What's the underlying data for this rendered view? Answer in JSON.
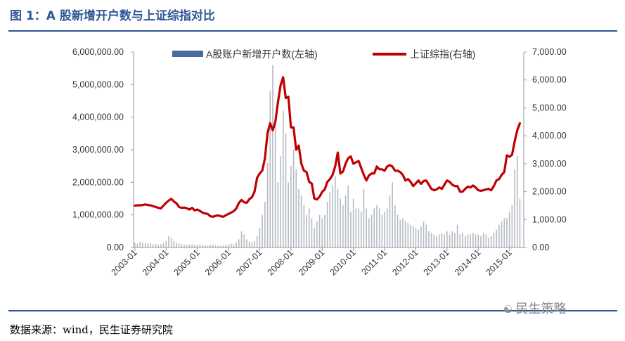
{
  "header": {
    "title": "图 1：A 股新增开户数与上证综指对比"
  },
  "footer": {
    "source": "数据来源：wind，民生证券研究院"
  },
  "watermark": {
    "text": "民生策略",
    "icon": "wechat-icon"
  },
  "colors": {
    "brand": "#2e5597",
    "bars": "#b4bac3",
    "legend_bar": "#4a69a0",
    "line": "#c00000"
  },
  "chart_data": {
    "type": "bar+line",
    "title": "",
    "x_tick_labels": [
      "2003-01",
      "2004-01",
      "2005-01",
      "2006-01",
      "2007-01",
      "2008-01",
      "2009-01",
      "2010-01",
      "2011-01",
      "2012-01",
      "2013-01",
      "2014-01",
      "2015-01"
    ],
    "y_left": {
      "label": "",
      "range": [
        0,
        6000000
      ],
      "tick_labels": [
        "0.00",
        "1,000,000.00",
        "2,000,000.00",
        "3,000,000.00",
        "4,000,000.00",
        "5,000,000.00",
        "6,000,000.00"
      ]
    },
    "y_right": {
      "label": "",
      "range": [
        0,
        7000
      ],
      "tick_labels": [
        "0.00",
        "1,000.00",
        "2,000.00",
        "3,000.00",
        "4,000.00",
        "5,000.00",
        "6,000.00",
        "7,000.00"
      ]
    },
    "legend": [
      "A股账户新增开户数(左轴)",
      "上证综指(右轴)"
    ],
    "series": [
      {
        "name": "A股账户新增开户数(左轴)",
        "axis": "left",
        "type": "bar",
        "start": "2003-01",
        "frequency": "monthly",
        "values": [
          150000,
          120000,
          180000,
          160000,
          140000,
          120000,
          130000,
          100000,
          110000,
          90000,
          100000,
          130000,
          200000,
          350000,
          300000,
          200000,
          150000,
          120000,
          100000,
          90000,
          80000,
          90000,
          100000,
          80000,
          80000,
          90000,
          80000,
          70000,
          60000,
          80000,
          90000,
          70000,
          60000,
          50000,
          70000,
          80000,
          90000,
          120000,
          100000,
          150000,
          250000,
          500000,
          400000,
          250000,
          180000,
          150000,
          200000,
          350000,
          600000,
          1000000,
          1400000,
          2600000,
          4800000,
          5600000,
          4000000,
          2000000,
          2800000,
          4200000,
          3500000,
          2000000,
          2500000,
          3000000,
          2400000,
          1800000,
          1600000,
          1300000,
          1000000,
          1200000,
          900000,
          600000,
          800000,
          1000000,
          900000,
          1000000,
          1400000,
          1700000,
          1900000,
          2200000,
          1800000,
          1500000,
          1300000,
          1600000,
          1900000,
          1100000,
          1500000,
          1200000,
          1200000,
          1100000,
          1800000,
          1200000,
          900000,
          1000000,
          1200000,
          1300000,
          1200000,
          1000000,
          1100000,
          1200000,
          1600000,
          2000000,
          1300000,
          1000000,
          850000,
          900000,
          800000,
          750000,
          700000,
          650000,
          600000,
          550000,
          650000,
          800000,
          700000,
          500000,
          450000,
          400000,
          350000,
          400000,
          450000,
          400000,
          500000,
          400000,
          500000,
          450000,
          700000,
          400000,
          450000,
          350000,
          400000,
          400000,
          450000,
          400000,
          400000,
          350000,
          450000,
          400000,
          300000,
          350000,
          450000,
          550000,
          700000,
          800000,
          900000,
          900000,
          1100000,
          1300000,
          2400000,
          2800000,
          1500000
        ]
      },
      {
        "name": "上证综指(右轴)",
        "axis": "right",
        "type": "line",
        "start": "2003-01",
        "frequency": "monthly",
        "values": [
          1500,
          1510,
          1510,
          1520,
          1540,
          1520,
          1510,
          1480,
          1450,
          1420,
          1400,
          1500,
          1600,
          1680,
          1740,
          1650,
          1580,
          1450,
          1420,
          1430,
          1400,
          1360,
          1420,
          1330,
          1360,
          1310,
          1250,
          1220,
          1200,
          1120,
          1100,
          1130,
          1150,
          1120,
          1100,
          1160,
          1200,
          1250,
          1300,
          1400,
          1600,
          1700,
          1620,
          1600,
          1730,
          1800,
          2000,
          2500,
          2650,
          2760,
          3200,
          4100,
          4450,
          4200,
          4500,
          5200,
          5800,
          6100,
          5350,
          5400,
          4300,
          4300,
          3500,
          3650,
          3000,
          2750,
          2700,
          2350,
          2290,
          1750,
          1720,
          1820,
          1990,
          2080,
          2350,
          2450,
          2600,
          2900,
          3400,
          2650,
          2720,
          3000,
          3200,
          3260,
          3000,
          3050,
          3100,
          2850,
          2600,
          2400,
          2580,
          2650,
          2650,
          2900,
          2800,
          2800,
          2750,
          2900,
          2950,
          2900,
          2750,
          2750,
          2700,
          2600,
          2400,
          2450,
          2350,
          2200,
          2300,
          2400,
          2280,
          2380,
          2400,
          2250,
          2100,
          2050,
          2080,
          2150,
          2100,
          2250,
          2400,
          2350,
          2250,
          2200,
          2200,
          2000,
          2000,
          2100,
          2180,
          2150,
          2220,
          2150,
          2050,
          2030,
          2050,
          2080,
          2100,
          2050,
          2200,
          2400,
          2450,
          2600,
          2700,
          3300,
          3250,
          3320,
          3800,
          4200,
          4450
        ]
      }
    ]
  }
}
